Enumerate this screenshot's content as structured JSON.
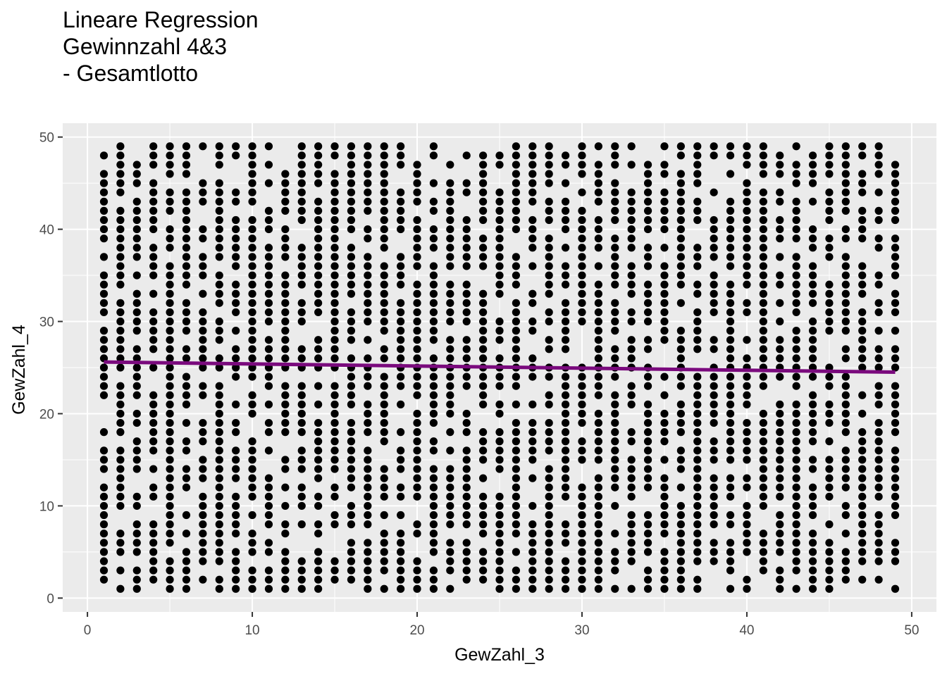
{
  "chart_data": {
    "type": "scatter",
    "title_lines": [
      "Lineare Regression",
      "Gewinnzahl 4&3",
      "- Gesamtlotto"
    ],
    "xlabel": "GewZahl_3",
    "ylabel": "GewZahl_4",
    "xlim": [
      -1.5,
      51.5
    ],
    "ylim": [
      -1.5,
      51.5
    ],
    "x_ticks": [
      0,
      10,
      20,
      30,
      40,
      50
    ],
    "y_ticks": [
      0,
      10,
      20,
      30,
      40,
      50
    ],
    "x_tick_labels": [
      "0",
      "10",
      "20",
      "30",
      "40",
      "50"
    ],
    "y_tick_labels": [
      "0",
      "10",
      "20",
      "30",
      "40",
      "50"
    ],
    "x_values": [
      1,
      2,
      3,
      4,
      5,
      6,
      7,
      8,
      9,
      10,
      11,
      12,
      13,
      14,
      15,
      16,
      17,
      18,
      19,
      20,
      21,
      22,
      23,
      24,
      25,
      26,
      27,
      28,
      29,
      30,
      31,
      32,
      33,
      34,
      35,
      36,
      37,
      38,
      39,
      40,
      41,
      42,
      43,
      44,
      45,
      46,
      47,
      48,
      49
    ],
    "y_values_min": 1,
    "y_values_max": 49,
    "point_color": "#000000",
    "panel_background": "#ebebeb",
    "grid": true,
    "regression_line": {
      "color": "#7a0a7d",
      "x": [
        1,
        49
      ],
      "y": [
        25.6,
        24.5
      ]
    },
    "legend": "none"
  }
}
